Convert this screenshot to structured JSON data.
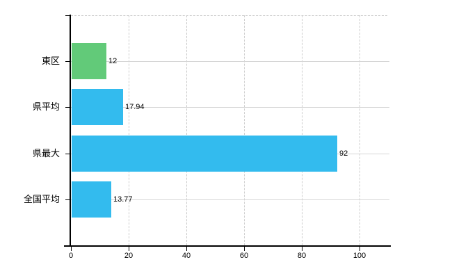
{
  "chart_data": {
    "type": "bar",
    "orientation": "horizontal",
    "title": "",
    "xlabel": "",
    "ylabel": "",
    "categories": [
      "東区",
      "県平均",
      "県最大",
      "全国平均"
    ],
    "series": [
      {
        "name": "value",
        "points": [
          {
            "category": "東区",
            "value": 12,
            "display": "12",
            "color": "#62ca79"
          },
          {
            "category": "県平均",
            "value": 17.94,
            "display": "17.94",
            "color": "#33bbee"
          },
          {
            "category": "県最大",
            "value": 92,
            "display": "92",
            "color": "#33bbee"
          },
          {
            "category": "全国平均",
            "value": 13.77,
            "display": "13.77",
            "color": "#33bbee"
          }
        ]
      }
    ],
    "x_axis": {
      "min": 0,
      "max": 110.6,
      "ticks": [
        0,
        20,
        40,
        60,
        80,
        100
      ],
      "tick_labels": [
        "0",
        "20",
        "40",
        "60",
        "80",
        "100"
      ]
    },
    "grid": {
      "vertical_gridlines": true,
      "horizontal_row_gridlines": true,
      "top_border_dashed": true
    },
    "legend": "none",
    "background": "#ffffff"
  },
  "colors": {
    "axis": "#000000",
    "vertical_gridline": "#cccccc",
    "horizontal_gridline": "#d6d6d6",
    "bar_green": "#62ca79",
    "bar_blue": "#33bbee",
    "text": "#000000"
  }
}
